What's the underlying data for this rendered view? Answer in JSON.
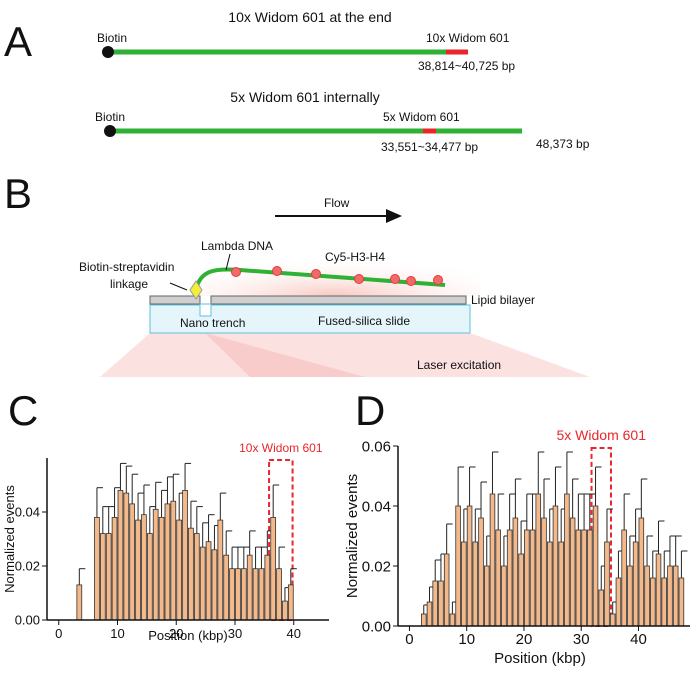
{
  "panel_a": {
    "label": "A",
    "construct_1": {
      "title": "10x Widom 601 at the end",
      "biotin": "Biotin",
      "insert": "10x Widom 601",
      "range": "38,814~40,725 bp"
    },
    "construct_2": {
      "title": "5x Widom 601 internally",
      "biotin": "Biotin",
      "insert": "5x Widom 601",
      "range": "33,551~34,477 bp",
      "length": "48,373 bp"
    }
  },
  "panel_b": {
    "label": "B",
    "flow": "Flow",
    "lambda_dna": "Lambda DNA",
    "histone": "Cy5-H3-H4",
    "linkage_1": "Biotin-streptavidin",
    "linkage_2": "linkage",
    "lipid": "Lipid bilayer",
    "trench": "Nano trench",
    "slide": "Fused-silica slide",
    "laser": "Laser excitation"
  },
  "chart_data": [
    {
      "type": "histogram",
      "panel_label": "C",
      "x_label": "Position (kbp)",
      "y_label": "Normalized events",
      "bins": [
        3,
        4,
        5,
        6,
        7,
        8,
        9,
        10,
        11,
        12,
        13,
        14,
        15,
        16,
        17,
        18,
        19,
        20,
        21,
        22,
        23,
        24,
        25,
        26,
        27,
        28,
        29,
        30,
        31,
        32,
        33,
        34,
        35,
        36,
        37,
        38,
        39,
        40
      ],
      "values": [
        0.013,
        0,
        0,
        0.038,
        0.032,
        0.032,
        0.038,
        0.048,
        0.047,
        0.043,
        0.037,
        0.039,
        0.032,
        0.041,
        0.038,
        0.043,
        0.044,
        0.037,
        0.048,
        0.034,
        0.032,
        0.027,
        0.029,
        0.026,
        0.037,
        0.024,
        0.019,
        0.019,
        0.019,
        0.024,
        0.019,
        0.019,
        0.024,
        0.038,
        0.019,
        0.007,
        0.013
      ],
      "errors": [
        0.006,
        null,
        null,
        0.011,
        0.01,
        0.01,
        0.011,
        0.01,
        0.01,
        0.011,
        0.01,
        0.011,
        0.01,
        0.01,
        0.01,
        0.01,
        0.01,
        0.01,
        0.01,
        0.01,
        0.01,
        0.009,
        0.01,
        0.009,
        0.01,
        0.009,
        0.008,
        0.008,
        0.008,
        0.009,
        0.008,
        0.008,
        0.009,
        0.012,
        0.008,
        0.005,
        0.006
      ],
      "color": "#f4b98b",
      "xlim": [
        -2,
        46
      ],
      "xticks": [
        0,
        10,
        20,
        30,
        40
      ],
      "ylim": [
        0,
        0.06
      ],
      "yticks": [
        {
          "value": 0,
          "label": "0.00"
        },
        {
          "value": 0.02,
          "label": "0.02"
        },
        {
          "value": 0.04,
          "label": "0.04"
        }
      ],
      "highlight": {
        "label": "10x Widom 601",
        "range": [
          35.8,
          39.8
        ],
        "color": "#e8262b"
      }
    },
    {
      "type": "histogram",
      "panel_label": "D",
      "x_label": "Position (kbp)",
      "y_label": "Normalized events",
      "bins": [
        2,
        3,
        4,
        5,
        6,
        7,
        8,
        9,
        10,
        11,
        12,
        13,
        14,
        15,
        16,
        17,
        18,
        19,
        20,
        21,
        22,
        23,
        24,
        25,
        26,
        27,
        28,
        29,
        30,
        31,
        32,
        33,
        34,
        35,
        36,
        37,
        38,
        39,
        40,
        41,
        42,
        43,
        44,
        45,
        46,
        47,
        48
      ],
      "values": [
        0.004,
        0.008,
        0.015,
        0.015,
        0.024,
        0.004,
        0.04,
        0.028,
        0.04,
        0.028,
        0.036,
        0.02,
        0.044,
        0.032,
        0.02,
        0.032,
        0.036,
        0.024,
        0.032,
        0.032,
        0.044,
        0.036,
        0.028,
        0.04,
        0.028,
        0.044,
        0.036,
        0.032,
        0.032,
        0.032,
        0.04,
        0.012,
        0.028,
        0.004,
        0.016,
        0.032,
        0.02,
        0.028,
        0.036,
        0.02,
        0.016,
        0.024,
        0.016,
        0.02,
        0.02,
        0.016
      ],
      "errors": [
        0.003,
        0.005,
        0.007,
        0.009,
        0.01,
        0.004,
        0.013,
        0.011,
        0.013,
        0.011,
        0.012,
        0.01,
        0.014,
        0.012,
        0.01,
        0.012,
        0.013,
        0.011,
        0.012,
        0.012,
        0.014,
        0.013,
        0.011,
        0.013,
        0.011,
        0.014,
        0.013,
        0.012,
        0.012,
        0.012,
        0.013,
        0.008,
        0.011,
        0.004,
        0.009,
        0.012,
        0.01,
        0.011,
        0.013,
        0.01,
        0.009,
        0.011,
        0.009,
        0.01,
        0.01,
        0.009
      ],
      "color": "#f4b98b",
      "xlim": [
        -2,
        49
      ],
      "xticks": [
        0,
        10,
        20,
        30,
        40
      ],
      "ylim": [
        0,
        0.06
      ],
      "yticks": [
        {
          "value": 0,
          "label": "0.00"
        },
        {
          "value": 0.02,
          "label": "0.02"
        },
        {
          "value": 0.04,
          "label": "0.04"
        },
        {
          "value": 0.06,
          "label": "0.06"
        }
      ],
      "highlight": {
        "label": "5x Widom 601",
        "range": [
          31.8,
          35.2
        ],
        "color": "#e8262b"
      }
    }
  ]
}
